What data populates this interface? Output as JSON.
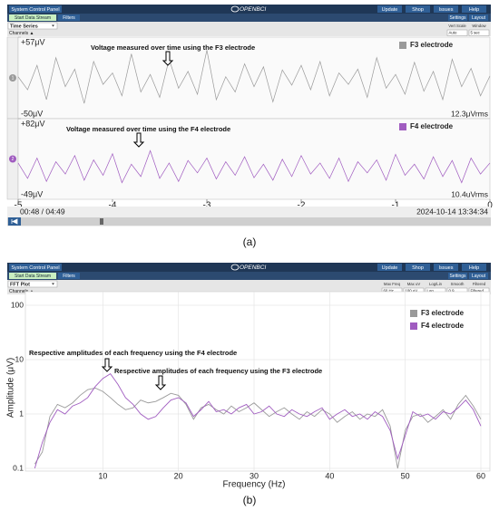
{
  "panels": [
    {
      "label": "(a)",
      "top_bar": {
        "title": "System Control Panel",
        "logo": "OPENBCI",
        "buttons": [
          "Update",
          "Shop",
          "Issues",
          "Help"
        ]
      },
      "toolbar": {
        "left": [
          "Start Data Stream",
          "Filters"
        ],
        "right": [
          "Settings",
          "Layout"
        ]
      },
      "widget": "Time Series",
      "channels": "Channels ▲",
      "controls": [
        {
          "label": "Vert Scale",
          "value": "Auto"
        },
        {
          "label": "Window",
          "value": "5 sec"
        }
      ],
      "playback": {
        "time": "00:48 / 04:49",
        "date": "2024-10-14 13:34:34"
      }
    },
    {
      "label": "(b)",
      "top_bar": {
        "title": "System Control Panel",
        "logo": "OPENBCI",
        "buttons": [
          "Update",
          "Shop",
          "Issues",
          "Help"
        ]
      },
      "toolbar": {
        "left": [
          "Start Data Stream",
          "Filters"
        ],
        "right": [
          "Settings",
          "Layout"
        ]
      },
      "widget": "FFT Plot",
      "channels": "Channels ▲",
      "controls": [
        {
          "label": "Max Freq",
          "value": "60 Hz"
        },
        {
          "label": "Max uV",
          "value": "100 uV"
        },
        {
          "label": "Log/Lin",
          "value": "Log"
        },
        {
          "label": "Smooth",
          "value": "0.9"
        },
        {
          "label": "Filtered",
          "value": "Filtered"
        }
      ]
    }
  ],
  "chart_data": [
    {
      "type": "line",
      "channel": "1",
      "annotation": "Voltage measured over time using the F3 electrode",
      "rms": "12.3μVrms",
      "x": [
        -5,
        -4.9,
        -4.8,
        -4.7,
        -4.6,
        -4.5,
        -4.4,
        -4.3,
        -4.2,
        -4.1,
        -4,
        -3.9,
        -3.8,
        -3.7,
        -3.6,
        -3.5,
        -3.4,
        -3.3,
        -3.2,
        -3.1,
        -3,
        -2.9,
        -2.8,
        -2.7,
        -2.6,
        -2.5,
        -2.4,
        -2.3,
        -2.2,
        -2.1,
        -2,
        -1.9,
        -1.8,
        -1.7,
        -1.6,
        -1.5,
        -1.4,
        -1.3,
        -1.2,
        -1.1,
        -1,
        -0.9,
        -0.8,
        -0.7,
        -0.6,
        -0.5,
        -0.4,
        -0.3,
        -0.2,
        -0.1,
        0
      ],
      "xlim": [
        -5,
        0
      ],
      "ylim": [
        -50,
        57
      ],
      "yticks": [
        {
          "value": 57,
          "label": "+57μV"
        },
        {
          "value": -50,
          "label": "-50μV"
        }
      ],
      "series": [
        {
          "name": "F3 electrode",
          "color": "#9a9a9a",
          "values": [
            5,
            -12,
            20,
            -25,
            30,
            -8,
            15,
            -30,
            25,
            -5,
            10,
            -20,
            35,
            -15,
            8,
            -22,
            28,
            -10,
            12,
            -18,
            40,
            -25,
            5,
            -15,
            22,
            -8,
            18,
            -28,
            14,
            -6,
            20,
            -12,
            25,
            -20,
            10,
            -5,
            15,
            -22,
            30,
            -10,
            8,
            -18,
            24,
            -14,
            12,
            -25,
            28,
            -8,
            16,
            -20,
            6
          ]
        }
      ]
    },
    {
      "type": "line",
      "channel": "2",
      "annotation": "Voltage measured over time using the F4 electrode",
      "rms": "10.4uVrms",
      "x": [
        -5,
        -4.9,
        -4.8,
        -4.7,
        -4.6,
        -4.5,
        -4.4,
        -4.3,
        -4.2,
        -4.1,
        -4,
        -3.9,
        -3.8,
        -3.7,
        -3.6,
        -3.5,
        -3.4,
        -3.3,
        -3.2,
        -3.1,
        -3,
        -2.9,
        -2.8,
        -2.7,
        -2.6,
        -2.5,
        -2.4,
        -2.3,
        -2.2,
        -2.1,
        -2,
        -1.9,
        -1.8,
        -1.7,
        -1.6,
        -1.5,
        -1.4,
        -1.3,
        -1.2,
        -1.1,
        -1,
        -0.9,
        -0.8,
        -0.7,
        -0.6,
        -0.5,
        -0.4,
        -0.3,
        -0.2,
        -0.1,
        0
      ],
      "xlim": [
        -5,
        0
      ],
      "xticks": [
        -5,
        -4,
        -3,
        -2,
        -1,
        0
      ],
      "ylim": [
        -49,
        82
      ],
      "yticks": [
        {
          "value": 82,
          "label": "+82μV"
        },
        {
          "value": -49,
          "label": "-49μV"
        }
      ],
      "series": [
        {
          "name": "F4 electrode",
          "color": "#a05cc0",
          "values": [
            10,
            -15,
            18,
            -20,
            12,
            -8,
            22,
            -18,
            15,
            -10,
            25,
            -22,
            8,
            -12,
            30,
            -15,
            10,
            -20,
            14,
            -6,
            18,
            -16,
            12,
            -10,
            20,
            -14,
            8,
            -18,
            16,
            -12,
            22,
            -8,
            10,
            -15,
            18,
            -20,
            12,
            -6,
            15,
            -18,
            24,
            -10,
            8,
            -16,
            20,
            -12,
            14,
            -22,
            18,
            -8,
            10
          ]
        }
      ]
    },
    {
      "type": "line",
      "xlabel": "Frequency (Hz)",
      "ylabel": "Amplitude (μV)",
      "ylog": true,
      "grid": true,
      "annotations": [
        "Respective amplitudes of each frequency using the F4 electrode",
        "Respective amplitudes of each frequency using the F3 electrode"
      ],
      "x": [
        1,
        2,
        3,
        4,
        5,
        6,
        7,
        8,
        9,
        10,
        11,
        12,
        13,
        14,
        15,
        16,
        17,
        18,
        19,
        20,
        21,
        22,
        23,
        24,
        25,
        26,
        27,
        28,
        29,
        30,
        31,
        32,
        33,
        34,
        35,
        36,
        37,
        38,
        39,
        40,
        41,
        42,
        43,
        44,
        45,
        46,
        47,
        48,
        49,
        50,
        51,
        52,
        53,
        54,
        55,
        56,
        57,
        58,
        59,
        60
      ],
      "xlim": [
        0,
        60
      ],
      "xticks": [
        10,
        20,
        30,
        40,
        50,
        60
      ],
      "ylim": [
        0.1,
        100
      ],
      "yticks": [
        0.1,
        1,
        10,
        100
      ],
      "series": [
        {
          "name": "F3 electrode",
          "color": "#9a9a9a",
          "values": [
            0.12,
            0.2,
            0.9,
            1.5,
            1.3,
            1.6,
            2.2,
            2.8,
            3.0,
            2.6,
            2.0,
            1.5,
            1.2,
            1.3,
            1.8,
            1.6,
            1.7,
            2.0,
            2.4,
            2.2,
            1.5,
            0.8,
            1.3,
            1.5,
            1.2,
            1.0,
            1.4,
            1.1,
            1.3,
            1.6,
            1.2,
            0.9,
            1.1,
            1.3,
            1.0,
            0.8,
            1.1,
            0.9,
            1.2,
            1.0,
            0.7,
            0.9,
            1.1,
            0.8,
            1.0,
            0.9,
            1.2,
            0.6,
            0.1,
            0.5,
            0.9,
            1.0,
            0.7,
            0.9,
            1.2,
            0.8,
            1.5,
            2.2,
            1.4,
            0.8
          ]
        },
        {
          "name": "F4 electrode",
          "color": "#a05cc0",
          "values": [
            0.1,
            0.3,
            0.7,
            1.2,
            1.0,
            1.4,
            1.6,
            2.0,
            3.2,
            4.5,
            5.5,
            3.5,
            2.0,
            1.5,
            1.0,
            0.8,
            0.9,
            1.3,
            1.8,
            2.0,
            1.6,
            0.9,
            1.2,
            1.7,
            1.1,
            1.2,
            1.0,
            1.3,
            1.5,
            1.0,
            1.1,
            1.4,
            1.0,
            0.9,
            1.2,
            1.0,
            0.9,
            1.1,
            1.3,
            0.8,
            1.0,
            1.2,
            0.9,
            1.0,
            0.8,
            1.1,
            0.9,
            0.5,
            0.15,
            0.4,
            1.1,
            0.9,
            1.0,
            0.8,
            1.1,
            1.0,
            1.3,
            1.8,
            1.2,
            0.6
          ]
        }
      ]
    }
  ]
}
